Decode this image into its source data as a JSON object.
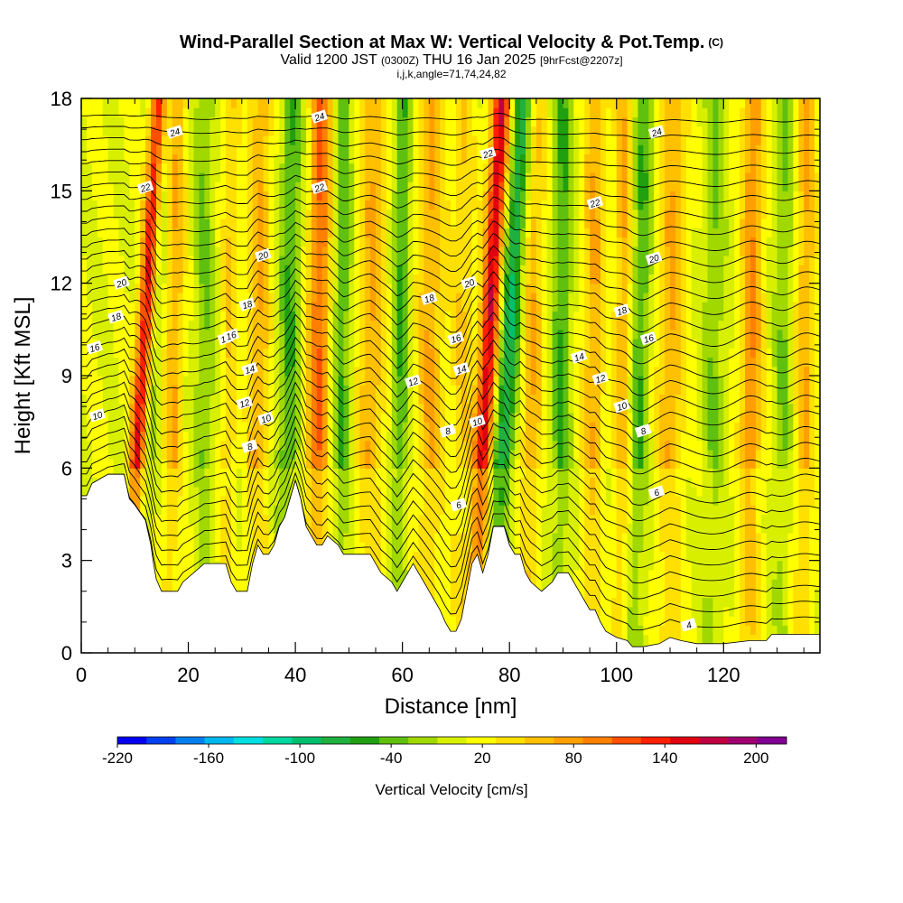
{
  "title": {
    "main": "Wind-Parallel Section at Max W: Vertical Velocity & Pot.Temp.",
    "copyright": "(C)",
    "valid_prefix": "Valid 1200 JST",
    "valid_utc": "(0300Z)",
    "valid_date": "THU 16 Jan 2025",
    "forecast": "[9hrFcst@2207z]",
    "indices": "i,j,k,angle=71,74,24,82"
  },
  "chart_data": {
    "type": "heatmap",
    "xlabel": "Distance [nm]",
    "ylabel": "Height [Kft MSL]",
    "xlim": [
      0,
      138
    ],
    "ylim": [
      0,
      18
    ],
    "x_ticks": [
      0,
      20,
      40,
      60,
      80,
      100,
      120
    ],
    "y_ticks": [
      0,
      3,
      6,
      9,
      12,
      15,
      18
    ],
    "colorbar": {
      "title": "Vertical Velocity [cm/s]",
      "min": -220,
      "max": 220,
      "step": 20,
      "tick_values": [
        -220,
        -160,
        -100,
        -40,
        20,
        80,
        140,
        200
      ],
      "tick_labels": [
        "-220",
        "-160",
        "-100",
        "-40",
        "20",
        "80",
        "140",
        "200"
      ],
      "colors": [
        "#0000f0",
        "#0040f0",
        "#0080f0",
        "#00b8f0",
        "#00e0e0",
        "#00d8a0",
        "#00c070",
        "#20b040",
        "#20a010",
        "#60c010",
        "#a0d800",
        "#d8f000",
        "#ffff00",
        "#ffe000",
        "#ffc000",
        "#ffa000",
        "#ff8000",
        "#ff5000",
        "#ff2000",
        "#e00010",
        "#c00040",
        "#a00070",
        "#800090"
      ]
    },
    "terrain_kft": [
      [
        0,
        5.1
      ],
      [
        1,
        5.1
      ],
      [
        2,
        5.5
      ],
      [
        5,
        5.8
      ],
      [
        8,
        5.8
      ],
      [
        9,
        5.0
      ],
      [
        10,
        4.8
      ],
      [
        12,
        4.3
      ],
      [
        13,
        3.5
      ],
      [
        13.5,
        2.9
      ],
      [
        14,
        2.4
      ],
      [
        15,
        2.0
      ],
      [
        18,
        2.0
      ],
      [
        19,
        2.3
      ],
      [
        21,
        2.6
      ],
      [
        23,
        2.9
      ],
      [
        27,
        2.9
      ],
      [
        28,
        2.3
      ],
      [
        29,
        2.0
      ],
      [
        31,
        2.0
      ],
      [
        32,
        2.9
      ],
      [
        33,
        3.5
      ],
      [
        34,
        3.2
      ],
      [
        35,
        3.2
      ],
      [
        36,
        3.5
      ],
      [
        37,
        4.1
      ],
      [
        38,
        4.4
      ],
      [
        39,
        5.0
      ],
      [
        40,
        5.6
      ],
      [
        41,
        5.0
      ],
      [
        42,
        4.1
      ],
      [
        43,
        3.8
      ],
      [
        44,
        3.5
      ],
      [
        45,
        3.5
      ],
      [
        46,
        3.8
      ],
      [
        48,
        3.5
      ],
      [
        49,
        3.2
      ],
      [
        52,
        3.2
      ],
      [
        54,
        3.2
      ],
      [
        55,
        2.9
      ],
      [
        56,
        2.6
      ],
      [
        58,
        2.3
      ],
      [
        59,
        2.0
      ],
      [
        60,
        2.3
      ],
      [
        61,
        2.6
      ],
      [
        62,
        2.9
      ],
      [
        63,
        2.6
      ],
      [
        64,
        2.3
      ],
      [
        65,
        2.0
      ],
      [
        66,
        1.7
      ],
      [
        67,
        1.4
      ],
      [
        68,
        1.0
      ],
      [
        69,
        0.7
      ],
      [
        70,
        0.7
      ],
      [
        71,
        1.1
      ],
      [
        72,
        2.0
      ],
      [
        73,
        2.9
      ],
      [
        74,
        3.2
      ],
      [
        75,
        2.6
      ],
      [
        76,
        3.2
      ],
      [
        77,
        4.1
      ],
      [
        79,
        4.1
      ],
      [
        80,
        3.5
      ],
      [
        81,
        3.2
      ],
      [
        82,
        3.2
      ],
      [
        83,
        2.6
      ],
      [
        84,
        2.3
      ],
      [
        86,
        2.0
      ],
      [
        88,
        2.3
      ],
      [
        89,
        2.6
      ],
      [
        91,
        2.6
      ],
      [
        92,
        2.3
      ],
      [
        93,
        2.0
      ],
      [
        94,
        1.7
      ],
      [
        95,
        1.4
      ],
      [
        96,
        1.4
      ],
      [
        97,
        1.0
      ],
      [
        98,
        0.7
      ],
      [
        100,
        0.5
      ],
      [
        102,
        0.4
      ],
      [
        103,
        0.2
      ],
      [
        105,
        0.2
      ],
      [
        108,
        0.3
      ],
      [
        110,
        0.5
      ],
      [
        112,
        0.4
      ],
      [
        115,
        0.3
      ],
      [
        120,
        0.3
      ],
      [
        125,
        0.4
      ],
      [
        128,
        0.4
      ],
      [
        129,
        0.6
      ],
      [
        131,
        0.6
      ],
      [
        138,
        0.6
      ]
    ],
    "theta_contour_labels": [
      "24",
      "24",
      "24",
      "22",
      "22",
      "22",
      "22",
      "20",
      "20",
      "20",
      "20",
      "18",
      "18",
      "18",
      "18",
      "16",
      "16",
      "16",
      "16",
      "16",
      "14",
      "14",
      "14",
      "12",
      "12",
      "12",
      "10",
      "10",
      "10",
      "10",
      "8",
      "8",
      "8",
      "6",
      "6",
      "4"
    ],
    "theta_contour_label_positions": [
      [
        17.5,
        16.9
      ],
      [
        44.5,
        17.4
      ],
      [
        107.5,
        16.9
      ],
      [
        12,
        15.1
      ],
      [
        44.5,
        15.1
      ],
      [
        76,
        16.2
      ],
      [
        96,
        14.6
      ],
      [
        34,
        12.9
      ],
      [
        7.5,
        12.0
      ],
      [
        72.5,
        12.0
      ],
      [
        107,
        12.8
      ],
      [
        6.5,
        10.9
      ],
      [
        65,
        11.5
      ],
      [
        101,
        11.1
      ],
      [
        31,
        11.3
      ],
      [
        2.5,
        9.9
      ],
      [
        27,
        10.2
      ],
      [
        70,
        10.2
      ],
      [
        106,
        10.2
      ],
      [
        28,
        10.3
      ],
      [
        31.5,
        9.2
      ],
      [
        71,
        9.2
      ],
      [
        93,
        9.6
      ],
      [
        30.5,
        8.1
      ],
      [
        62,
        8.8
      ],
      [
        97,
        8.9
      ],
      [
        3,
        7.7
      ],
      [
        34.5,
        7.6
      ],
      [
        74,
        7.5
      ],
      [
        101,
        8.0
      ],
      [
        31.5,
        6.7
      ],
      [
        68.5,
        7.2
      ],
      [
        105,
        7.2
      ],
      [
        70.5,
        4.8
      ],
      [
        107.5,
        5.2
      ],
      [
        113.5,
        0.9
      ]
    ],
    "w_bands": [
      {
        "x": 10.5,
        "w": 160,
        "width": 1.6,
        "tilt": 0.35
      },
      {
        "x": 12.0,
        "w": -60,
        "width": 1.4,
        "tilt": 0.3
      },
      {
        "x": 17.0,
        "w": 60,
        "width": 1.6,
        "tilt": 0.1
      },
      {
        "x": 23.0,
        "w": -40,
        "width": 2.0,
        "tilt": 0.0
      },
      {
        "x": 27.5,
        "w": 40,
        "width": 1.5,
        "tilt": 0.05
      },
      {
        "x": 33.0,
        "w": 60,
        "width": 2.0,
        "tilt": 0.05
      },
      {
        "x": 38.5,
        "w": -60,
        "width": 2.0,
        "tilt": 0.08
      },
      {
        "x": 44.0,
        "w": 100,
        "width": 2.0,
        "tilt": 0.08
      },
      {
        "x": 48.5,
        "w": -60,
        "width": 1.6,
        "tilt": 0.05
      },
      {
        "x": 54.0,
        "w": 60,
        "width": 2.5,
        "tilt": 0.05
      },
      {
        "x": 59.5,
        "w": -60,
        "width": 1.6,
        "tilt": 0.05
      },
      {
        "x": 65.0,
        "w": 60,
        "width": 2.5,
        "tilt": 0.05
      },
      {
        "x": 71.0,
        "w": 40,
        "width": 2.0,
        "tilt": 0.05
      },
      {
        "x": 75.0,
        "w": 160,
        "width": 1.8,
        "tilt": 0.3
      },
      {
        "x": 78.5,
        "w": -100,
        "width": 2.2,
        "tilt": 0.35
      },
      {
        "x": 84.0,
        "w": 60,
        "width": 2.0,
        "tilt": 0.05
      },
      {
        "x": 89.5,
        "w": -60,
        "width": 1.8,
        "tilt": 0.05
      },
      {
        "x": 95.5,
        "w": 60,
        "width": 2.0,
        "tilt": 0.05
      },
      {
        "x": 101.0,
        "w": 60,
        "width": 1.6,
        "tilt": 0.05
      },
      {
        "x": 104.0,
        "w": -60,
        "width": 1.8,
        "tilt": 0.1
      },
      {
        "x": 110.0,
        "w": 60,
        "width": 2.5,
        "tilt": 0.05
      },
      {
        "x": 118.0,
        "w": -40,
        "width": 2.0,
        "tilt": 0.05
      },
      {
        "x": 125.0,
        "w": 80,
        "width": 2.0,
        "tilt": 0.05
      },
      {
        "x": 131.0,
        "w": -40,
        "width": 1.8,
        "tilt": 0.05
      },
      {
        "x": 135.0,
        "w": 60,
        "width": 1.8,
        "tilt": 0.05
      }
    ],
    "background_w": 20,
    "grid": false
  }
}
